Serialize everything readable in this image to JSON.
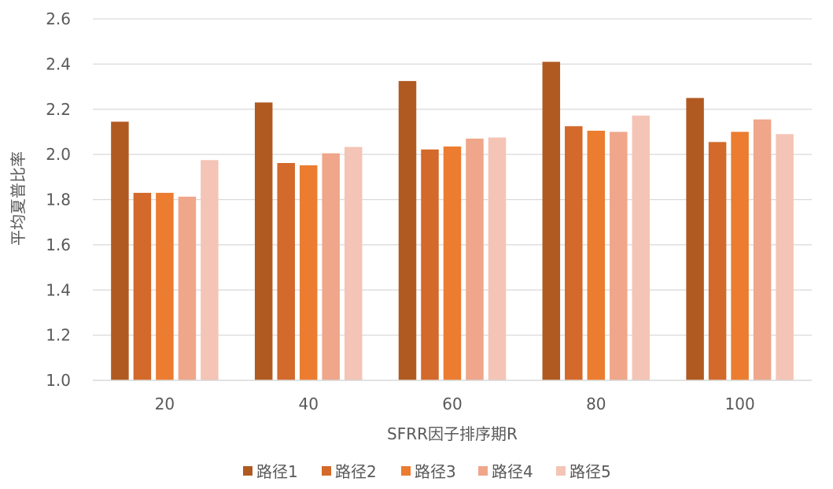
{
  "chart_data": {
    "type": "bar",
    "categories": [
      "20",
      "40",
      "60",
      "80",
      "100"
    ],
    "series": [
      {
        "name": "路径1",
        "color": "#b05a22",
        "values": [
          2.145,
          2.23,
          2.325,
          2.41,
          2.25
        ]
      },
      {
        "name": "路径2",
        "color": "#d3692a",
        "values": [
          1.83,
          1.962,
          2.022,
          2.125,
          2.055
        ]
      },
      {
        "name": "路径3",
        "color": "#eb7c30",
        "values": [
          1.83,
          1.952,
          2.035,
          2.105,
          2.1
        ]
      },
      {
        "name": "路径4",
        "color": "#efa68a",
        "values": [
          1.813,
          2.005,
          2.07,
          2.1,
          2.155
        ]
      },
      {
        "name": "路径5",
        "color": "#f4c4b6",
        "values": [
          1.975,
          2.033,
          2.075,
          2.172,
          2.09
        ]
      }
    ],
    "title": "",
    "xlabel": "SFRR因子排序期R",
    "ylabel": "平均夏普比率",
    "ylim": [
      1.0,
      2.6
    ],
    "yticks": [
      "1.0",
      "1.2",
      "1.4",
      "1.6",
      "1.8",
      "2.0",
      "2.2",
      "2.4",
      "2.6"
    ],
    "grid": true,
    "legend_position": "bottom"
  }
}
